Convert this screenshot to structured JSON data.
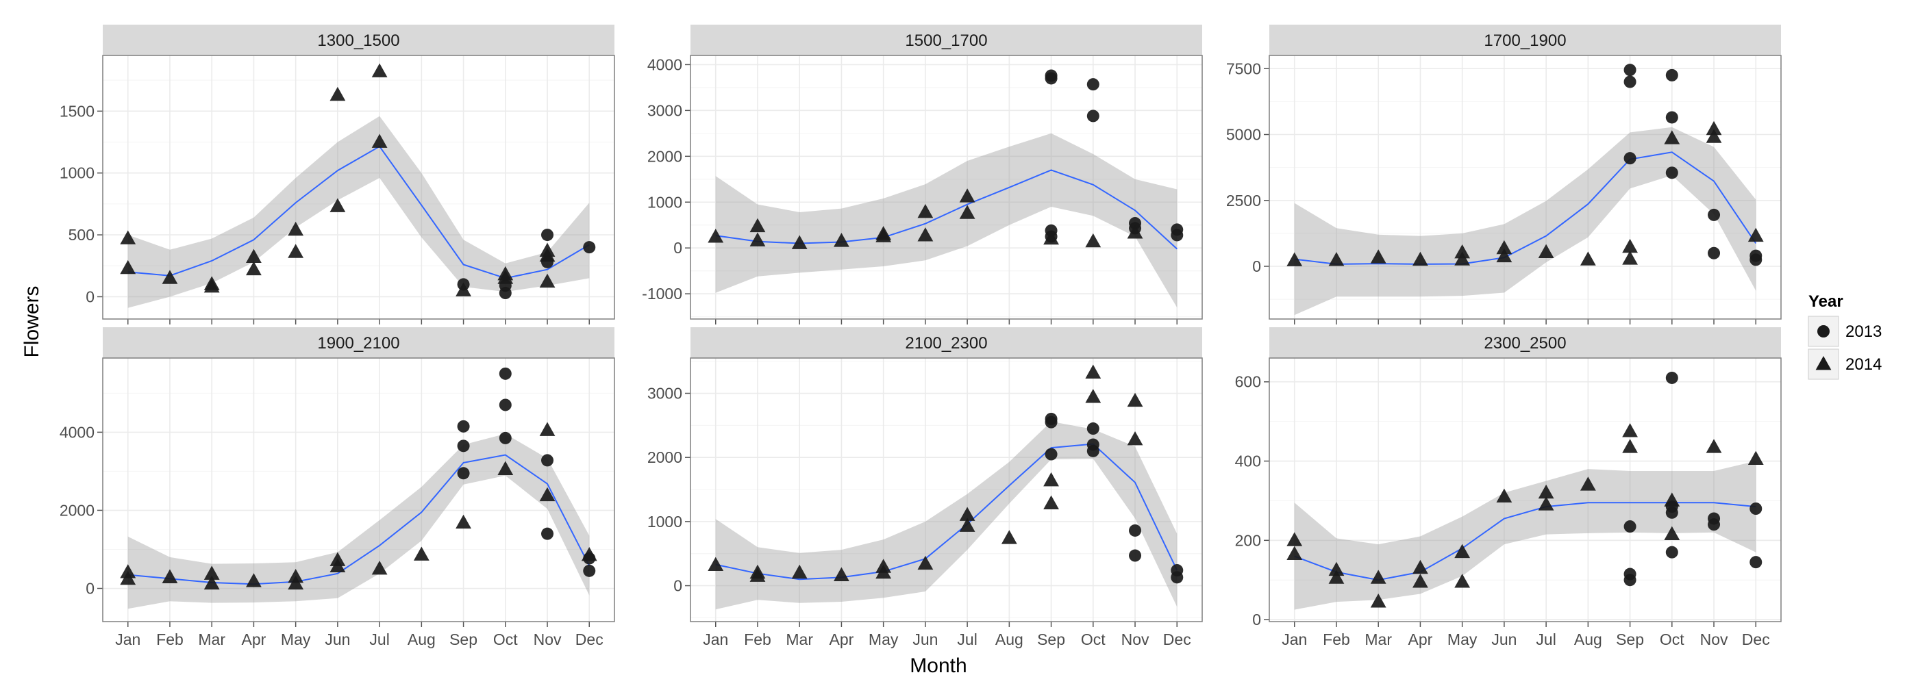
{
  "chart_data": {
    "type": "scatter",
    "xlabel": "Month",
    "ylabel": "Flowers",
    "months": [
      "Jan",
      "Feb",
      "Mar",
      "Apr",
      "May",
      "Jun",
      "Jul",
      "Aug",
      "Sep",
      "Oct",
      "Nov",
      "Dec"
    ],
    "legend": {
      "title": "Year",
      "placement": "right",
      "entries": [
        {
          "label": "2013",
          "shape": "circle"
        },
        {
          "label": "2014",
          "shape": "triangle"
        }
      ]
    },
    "colors": {
      "points": "#1a1a1a",
      "smooth_line": "#3366FF",
      "confidence_band": "#999999",
      "panel_bg": "#ffffff",
      "strip_bg": "#d9d9d9",
      "grid": "#ebebeb",
      "axis_text": "#4d4d4d"
    },
    "panels": [
      {
        "title": "1300_1500",
        "ylim": [
          -180,
          1950
        ],
        "yticks": [
          0,
          500,
          1000,
          1500
        ],
        "smooth": [
          200,
          170,
          290,
          460,
          760,
          1020,
          1215,
          740,
          260,
          150,
          220,
          420
        ],
        "band_lo": [
          -90,
          0,
          110,
          280,
          560,
          780,
          960,
          480,
          80,
          40,
          90,
          150
        ],
        "band_hi": [
          500,
          380,
          470,
          640,
          960,
          1250,
          1460,
          1000,
          460,
          270,
          360,
          760
        ],
        "points_2013": [
          [
            9,
            100
          ],
          [
            10,
            30
          ],
          [
            10,
            90
          ],
          [
            11,
            280
          ],
          [
            11,
            500
          ],
          [
            12,
            400
          ]
        ],
        "points_2014": [
          [
            1,
            230
          ],
          [
            1,
            470
          ],
          [
            2,
            150
          ],
          [
            3,
            80
          ],
          [
            3,
            100
          ],
          [
            4,
            220
          ],
          [
            4,
            320
          ],
          [
            5,
            360
          ],
          [
            5,
            540
          ],
          [
            6,
            730
          ],
          [
            6,
            1630
          ],
          [
            7,
            1250
          ],
          [
            7,
            1820
          ],
          [
            9,
            50
          ],
          [
            10,
            150
          ],
          [
            10,
            180
          ],
          [
            11,
            120
          ],
          [
            11,
            330
          ],
          [
            11,
            370
          ]
        ]
      },
      {
        "title": "1500_1700",
        "ylim": [
          -1550,
          4200
        ],
        "yticks": [
          -1000,
          0,
          1000,
          2000,
          3000,
          4000
        ],
        "smooth": [
          270,
          140,
          100,
          130,
          230,
          530,
          950,
          1320,
          1700,
          1380,
          820,
          -20
        ],
        "band_lo": [
          -980,
          -620,
          -540,
          -470,
          -400,
          -270,
          40,
          500,
          900,
          700,
          250,
          -1300
        ],
        "band_hi": [
          1570,
          950,
          780,
          860,
          1080,
          1390,
          1900,
          2210,
          2500,
          2050,
          1500,
          1280
        ],
        "points_2013": [
          [
            9,
            250
          ],
          [
            9,
            380
          ],
          [
            9,
            3700
          ],
          [
            9,
            3760
          ],
          [
            10,
            2880
          ],
          [
            10,
            3570
          ],
          [
            11,
            430
          ],
          [
            11,
            540
          ],
          [
            12,
            280
          ],
          [
            12,
            400
          ]
        ],
        "points_2014": [
          [
            1,
            240
          ],
          [
            2,
            160
          ],
          [
            2,
            470
          ],
          [
            3,
            100
          ],
          [
            4,
            150
          ],
          [
            5,
            250
          ],
          [
            5,
            300
          ],
          [
            6,
            270
          ],
          [
            6,
            780
          ],
          [
            7,
            760
          ],
          [
            7,
            1120
          ],
          [
            9,
            200
          ],
          [
            10,
            140
          ],
          [
            11,
            330
          ]
        ]
      },
      {
        "title": "1700_1900",
        "ylim": [
          -2000,
          8000
        ],
        "yticks": [
          0,
          2500,
          5000,
          7500
        ],
        "smooth": [
          270,
          80,
          100,
          80,
          90,
          330,
          1150,
          2360,
          4060,
          4330,
          3230,
          870
        ],
        "band_lo": [
          -1850,
          -1150,
          -1150,
          -1150,
          -1120,
          -1000,
          150,
          1100,
          2950,
          3450,
          1980,
          -930
        ],
        "band_hi": [
          2400,
          1450,
          1200,
          1150,
          1250,
          1600,
          2480,
          3680,
          5080,
          5280,
          4530,
          2530
        ],
        "points_2013": [
          [
            9,
            4100
          ],
          [
            9,
            7000
          ],
          [
            9,
            7450
          ],
          [
            10,
            3550
          ],
          [
            10,
            5650
          ],
          [
            10,
            7250
          ],
          [
            11,
            500
          ],
          [
            11,
            1950
          ],
          [
            12,
            250
          ],
          [
            12,
            400
          ]
        ],
        "points_2014": [
          [
            1,
            220
          ],
          [
            2,
            230
          ],
          [
            3,
            330
          ],
          [
            4,
            240
          ],
          [
            5,
            250
          ],
          [
            5,
            520
          ],
          [
            6,
            370
          ],
          [
            6,
            680
          ],
          [
            7,
            530
          ],
          [
            8,
            250
          ],
          [
            9,
            280
          ],
          [
            9,
            730
          ],
          [
            10,
            4850
          ],
          [
            11,
            4900
          ],
          [
            11,
            5200
          ],
          [
            12,
            1150
          ]
        ]
      },
      {
        "title": "1900_2100",
        "ylim": [
          -850,
          5900
        ],
        "yticks": [
          0,
          2000,
          4000
        ],
        "smooth": [
          350,
          250,
          150,
          110,
          170,
          380,
          1100,
          1950,
          3220,
          3420,
          2680,
          580
        ],
        "band_lo": [
          -520,
          -330,
          -370,
          -360,
          -330,
          -250,
          380,
          1220,
          2660,
          2890,
          2040,
          -180
        ],
        "band_hi": [
          1330,
          800,
          630,
          640,
          670,
          930,
          1750,
          2600,
          3680,
          3960,
          3330,
          1350
        ],
        "points_2013": [
          [
            9,
            2950
          ],
          [
            9,
            3650
          ],
          [
            9,
            4150
          ],
          [
            10,
            3850
          ],
          [
            10,
            4700
          ],
          [
            10,
            5500
          ],
          [
            11,
            1400
          ],
          [
            11,
            3280
          ],
          [
            12,
            450
          ],
          [
            12,
            770
          ]
        ],
        "points_2014": [
          [
            1,
            240
          ],
          [
            1,
            410
          ],
          [
            2,
            280
          ],
          [
            3,
            120
          ],
          [
            3,
            370
          ],
          [
            4,
            180
          ],
          [
            5,
            120
          ],
          [
            5,
            290
          ],
          [
            6,
            560
          ],
          [
            6,
            720
          ],
          [
            7,
            500
          ],
          [
            8,
            860
          ],
          [
            9,
            1680
          ],
          [
            10,
            3050
          ],
          [
            11,
            2380
          ],
          [
            11,
            4050
          ],
          [
            12,
            850
          ]
        ]
      },
      {
        "title": "2100_2300",
        "ylim": [
          -560,
          3550
        ],
        "yticks": [
          0,
          1000,
          2000,
          3000
        ],
        "smooth": [
          330,
          190,
          100,
          130,
          220,
          420,
          960,
          1560,
          2150,
          2210,
          1610,
          240
        ],
        "band_lo": [
          -370,
          -220,
          -270,
          -250,
          -190,
          -90,
          560,
          1280,
          1970,
          1980,
          1050,
          -330
        ],
        "band_hi": [
          1040,
          600,
          510,
          560,
          720,
          1000,
          1430,
          1930,
          2560,
          2440,
          2170,
          810
        ],
        "points_2013": [
          [
            9,
            2050
          ],
          [
            9,
            2550
          ],
          [
            9,
            2600
          ],
          [
            10,
            2100
          ],
          [
            10,
            2200
          ],
          [
            10,
            2450
          ],
          [
            11,
            470
          ],
          [
            11,
            860
          ],
          [
            12,
            130
          ],
          [
            12,
            240
          ]
        ],
        "points_2014": [
          [
            1,
            320
          ],
          [
            2,
            150
          ],
          [
            2,
            200
          ],
          [
            3,
            200
          ],
          [
            4,
            160
          ],
          [
            5,
            200
          ],
          [
            5,
            290
          ],
          [
            6,
            340
          ],
          [
            7,
            930
          ],
          [
            7,
            1100
          ],
          [
            8,
            740
          ],
          [
            9,
            1280
          ],
          [
            9,
            1640
          ],
          [
            10,
            2940
          ],
          [
            10,
            3320
          ],
          [
            11,
            2280
          ],
          [
            11,
            2880
          ]
        ]
      },
      {
        "title": "2300_2500",
        "ylim": [
          -5,
          660
        ],
        "yticks": [
          0,
          200,
          400,
          600
        ],
        "smooth": [
          160,
          120,
          100,
          120,
          180,
          255,
          285,
          295,
          295,
          295,
          295,
          285
        ],
        "band_lo": [
          25,
          45,
          50,
          65,
          110,
          190,
          215,
          218,
          220,
          218,
          220,
          170
        ],
        "band_hi": [
          295,
          205,
          190,
          210,
          260,
          320,
          350,
          380,
          375,
          375,
          375,
          400
        ],
        "points_2013": [
          [
            9,
            100
          ],
          [
            9,
            115
          ],
          [
            9,
            235
          ],
          [
            10,
            170
          ],
          [
            10,
            270
          ],
          [
            10,
            285
          ],
          [
            10,
            610
          ],
          [
            11,
            240
          ],
          [
            11,
            255
          ],
          [
            12,
            145
          ],
          [
            12,
            280
          ]
        ],
        "points_2014": [
          [
            1,
            165
          ],
          [
            1,
            200
          ],
          [
            2,
            105
          ],
          [
            2,
            125
          ],
          [
            3,
            45
          ],
          [
            3,
            105
          ],
          [
            4,
            95
          ],
          [
            4,
            130
          ],
          [
            5,
            95
          ],
          [
            5,
            170
          ],
          [
            6,
            310
          ],
          [
            7,
            290
          ],
          [
            7,
            320
          ],
          [
            8,
            340
          ],
          [
            9,
            435
          ],
          [
            9,
            475
          ],
          [
            10,
            215
          ],
          [
            10,
            300
          ],
          [
            11,
            435
          ],
          [
            12,
            405
          ]
        ]
      }
    ]
  }
}
